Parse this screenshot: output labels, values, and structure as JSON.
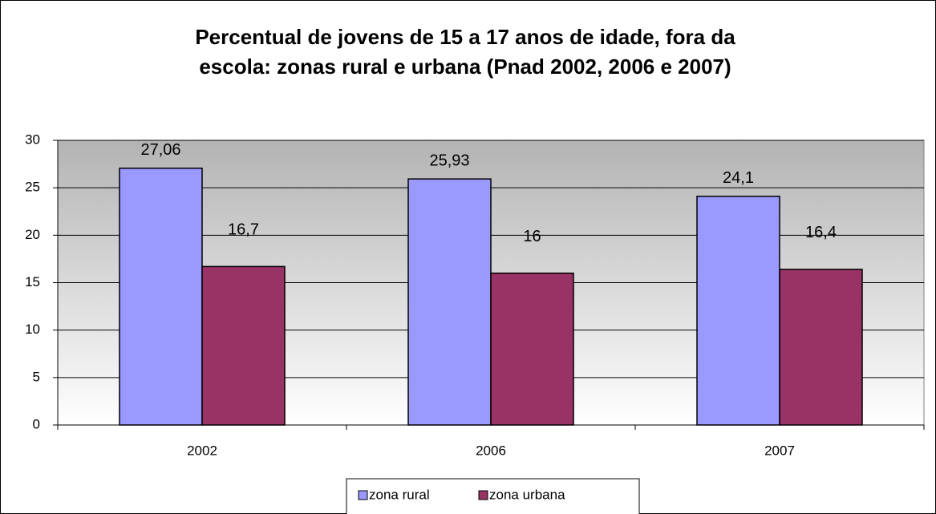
{
  "chart_data": {
    "type": "bar",
    "title": [
      "Percentual de jovens de 15 a 17 anos de idade, fora da",
      "escola: zonas rural e urbana (Pnad 2002, 2006 e 2007)"
    ],
    "categories": [
      "2002",
      "2006",
      "2007"
    ],
    "series": [
      {
        "name": "zona rural",
        "color": "#9999ff",
        "values": [
          27.06,
          25.93,
          24.1
        ],
        "value_labels": [
          "27,06",
          "25,93",
          "24,1"
        ]
      },
      {
        "name": "zona urbana",
        "color": "#993366",
        "values": [
          16.7,
          16,
          16.4
        ],
        "value_labels": [
          "16,7",
          "16",
          "16,4"
        ]
      }
    ],
    "ylim": [
      0,
      30
    ],
    "yticks": [
      0,
      5,
      10,
      15,
      20,
      25,
      30
    ],
    "grid": true,
    "legend": "bottom"
  }
}
